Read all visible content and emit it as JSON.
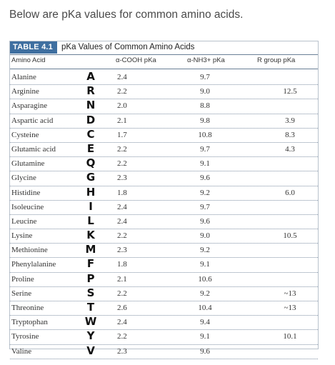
{
  "intro": "Below are pKa values for common amino acids.",
  "table": {
    "tag": "TABLE 4.1",
    "title": "pKa Values of Common Amino Acids",
    "headers": {
      "name": "Amino Acid",
      "cooh": "α-COOH pKa",
      "nh3": "α-NH3+ pKa",
      "rgroup": "R group pKa"
    },
    "rows": [
      {
        "name": "Alanine",
        "code": "A",
        "cooh": "2.4",
        "nh3": "9.7",
        "r": ""
      },
      {
        "name": "Arginine",
        "code": "R",
        "cooh": "2.2",
        "nh3": "9.0",
        "r": "12.5"
      },
      {
        "name": "Asparagine",
        "code": "N",
        "cooh": "2.0",
        "nh3": "8.8",
        "r": ""
      },
      {
        "name": "Aspartic acid",
        "code": "D",
        "cooh": "2.1",
        "nh3": "9.8",
        "r": "3.9"
      },
      {
        "name": "Cysteine",
        "code": "C",
        "cooh": "1.7",
        "nh3": "10.8",
        "r": "8.3"
      },
      {
        "name": "Glutamic acid",
        "code": "E",
        "cooh": "2.2",
        "nh3": "9.7",
        "r": "4.3"
      },
      {
        "name": "Glutamine",
        "code": "Q",
        "cooh": "2.2",
        "nh3": "9.1",
        "r": ""
      },
      {
        "name": "Glycine",
        "code": "G",
        "cooh": "2.3",
        "nh3": "9.6",
        "r": ""
      },
      {
        "name": "Histidine",
        "code": "H",
        "cooh": "1.8",
        "nh3": "9.2",
        "r": "6.0"
      },
      {
        "name": "Isoleucine",
        "code": "I",
        "cooh": "2.4",
        "nh3": "9.7",
        "r": ""
      },
      {
        "name": "Leucine",
        "code": "L",
        "cooh": "2.4",
        "nh3": "9.6",
        "r": ""
      },
      {
        "name": "Lysine",
        "code": "K",
        "cooh": "2.2",
        "nh3": "9.0",
        "r": "10.5"
      },
      {
        "name": "Methionine",
        "code": "M",
        "cooh": "2.3",
        "nh3": "9.2",
        "r": ""
      },
      {
        "name": "Phenylalanine",
        "code": "F",
        "cooh": "1.8",
        "nh3": "9.1",
        "r": ""
      },
      {
        "name": "Proline",
        "code": "P",
        "cooh": "2.1",
        "nh3": "10.6",
        "r": ""
      },
      {
        "name": "Serine",
        "code": "S",
        "cooh": "2.2",
        "nh3": "9.2",
        "r": "~13"
      },
      {
        "name": "Threonine",
        "code": "T",
        "cooh": "2.6",
        "nh3": "10.4",
        "r": "~13"
      },
      {
        "name": "Tryptophan",
        "code": "W",
        "cooh": "2.4",
        "nh3": "9.4",
        "r": ""
      },
      {
        "name": "Tyrosine",
        "code": "Y",
        "cooh": "2.2",
        "nh3": "9.1",
        "r": "10.1"
      },
      {
        "name": "Valine",
        "code": "V",
        "cooh": "2.3",
        "nh3": "9.6",
        "r": ""
      }
    ]
  }
}
